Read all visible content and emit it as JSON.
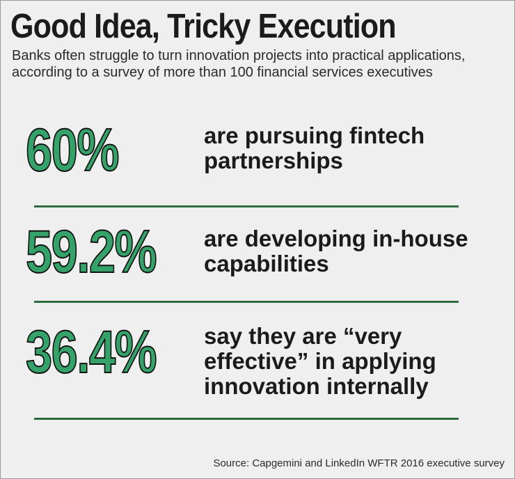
{
  "title": "Good Idea, Tricky Execution",
  "subtitle": "Banks often struggle to turn innovation projects into practical applications, according to a survey of more than 100 financial services executives",
  "stats": [
    {
      "value": "60%",
      "text": "are pursuing fintech partnerships"
    },
    {
      "value": "59.2%",
      "text": "are developing in-house capabilities"
    },
    {
      "value": "36.4%",
      "text": "say they are “very effective” in applying innovation internally"
    }
  ],
  "source": "Source: Capgemini and LinkedIn WFTR 2016 executive survey",
  "colors": {
    "stat_fill": "#35a26a",
    "divider": "#2e6b3e",
    "background": "#efefef"
  }
}
